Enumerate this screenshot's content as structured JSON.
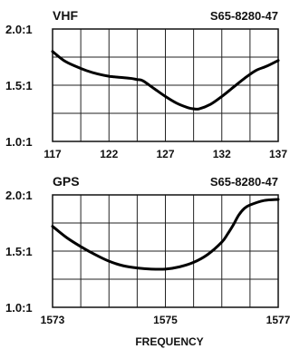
{
  "chart_data": [
    {
      "type": "line",
      "title": "VHF",
      "part_number": "S65-8280-47",
      "xlim": [
        117,
        137
      ],
      "ylim": [
        1.0,
        2.0
      ],
      "x_ticks": [
        "117",
        "122",
        "127",
        "132",
        "137"
      ],
      "y_ticks": [
        "2.0:1",
        "1.5:1",
        "1.0:1"
      ],
      "x_grid": [
        117,
        119.5,
        122,
        124.5,
        127,
        129.5,
        132,
        134.5,
        137
      ],
      "y_grid": [
        1.0,
        1.25,
        1.5,
        1.75,
        2.0
      ],
      "grid": true,
      "series": [
        {
          "x": [
            117,
            118,
            119,
            120,
            121,
            122,
            123,
            124,
            124.5,
            125,
            126,
            127,
            128,
            129,
            129.5,
            130,
            131,
            132,
            133,
            134,
            135,
            136,
            137
          ],
          "y": [
            1.8,
            1.72,
            1.67,
            1.63,
            1.6,
            1.58,
            1.57,
            1.56,
            1.55,
            1.54,
            1.47,
            1.4,
            1.34,
            1.3,
            1.29,
            1.29,
            1.33,
            1.4,
            1.48,
            1.56,
            1.63,
            1.67,
            1.72
          ]
        }
      ]
    },
    {
      "type": "line",
      "title": "GPS",
      "part_number": "S65-8280-47",
      "xlim": [
        1573,
        1577
      ],
      "ylim": [
        1.0,
        2.0
      ],
      "x_ticks": [
        "1573",
        "1575",
        "1577"
      ],
      "y_ticks": [
        "2.0:1",
        "1.5:1",
        "1.0:1"
      ],
      "x_grid": [
        1573,
        1573.5,
        1574,
        1574.5,
        1575,
        1575.5,
        1576,
        1576.5,
        1577
      ],
      "y_grid": [
        1.0,
        1.25,
        1.5,
        1.75,
        2.0
      ],
      "grid": true,
      "series": [
        {
          "x": [
            1573,
            1573.25,
            1573.5,
            1573.75,
            1574,
            1574.25,
            1574.5,
            1574.75,
            1575,
            1575.25,
            1575.5,
            1575.75,
            1576,
            1576.1,
            1576.2,
            1576.3,
            1576.4,
            1576.5,
            1576.75,
            1577
          ],
          "y": [
            1.72,
            1.62,
            1.54,
            1.47,
            1.41,
            1.37,
            1.35,
            1.34,
            1.34,
            1.36,
            1.4,
            1.47,
            1.58,
            1.65,
            1.73,
            1.82,
            1.88,
            1.91,
            1.95,
            1.96
          ]
        }
      ]
    }
  ],
  "xlabel": "FREQUENCY"
}
